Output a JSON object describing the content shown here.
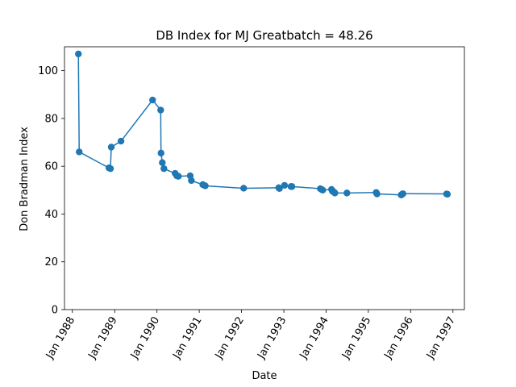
{
  "chart_data": {
    "type": "line",
    "title": "DB Index for MJ Greatbatch = 48.26",
    "xlabel": "Date",
    "ylabel": "Don Bradman Index",
    "ylim": [
      0,
      110
    ],
    "xlim": [
      "1987-10-25",
      "1997-04-10"
    ],
    "yticks": [
      0,
      20,
      40,
      60,
      80,
      100
    ],
    "xticks": [
      {
        "date": "1988-01-01",
        "label": "Jan 1988"
      },
      {
        "date": "1989-01-01",
        "label": "Jan 1989"
      },
      {
        "date": "1990-01-01",
        "label": "Jan 1990"
      },
      {
        "date": "1991-01-01",
        "label": "Jan 1991"
      },
      {
        "date": "1992-01-01",
        "label": "Jan 1992"
      },
      {
        "date": "1993-01-01",
        "label": "Jan 1993"
      },
      {
        "date": "1994-01-01",
        "label": "Jan 1994"
      },
      {
        "date": "1995-01-01",
        "label": "Jan 1995"
      },
      {
        "date": "1996-01-01",
        "label": "Jan 1996"
      },
      {
        "date": "1997-01-01",
        "label": "Jan 1997"
      }
    ],
    "grid": false,
    "color": "#1f77b4",
    "series": [
      {
        "x": [
          "1988-02-22",
          "1988-02-29",
          "1988-11-12",
          "1988-11-25",
          "1988-12-02",
          "1989-02-24",
          "1989-11-24",
          "1990-02-02",
          "1990-02-05",
          "1990-02-16",
          "1990-03-02",
          "1990-06-07",
          "1990-06-21",
          "1990-07-05",
          "1990-10-15",
          "1990-10-25",
          "1991-02-01",
          "1991-02-22",
          "1992-01-20",
          "1992-11-18",
          "1992-11-24",
          "1993-01-07",
          "1993-03-04",
          "1993-03-12",
          "1993-11-12",
          "1993-11-26",
          "1993-12-03",
          "1994-02-17",
          "1994-02-25",
          "1994-03-11",
          "1994-03-18",
          "1994-06-30",
          "1995-03-10",
          "1995-03-17",
          "1995-10-12",
          "1995-10-20",
          "1995-10-27",
          "1996-11-07",
          "1996-11-14"
        ],
        "y": [
          107,
          66,
          59.3,
          59,
          68,
          70.5,
          87.7,
          83.5,
          65.5,
          61.5,
          59,
          57,
          56,
          55.8,
          56,
          54,
          52.3,
          51.8,
          50.8,
          51,
          50.7,
          52,
          51.5,
          51.5,
          50.6,
          50.2,
          50,
          50.3,
          49.5,
          49.2,
          48.8,
          48.8,
          49,
          48.4,
          48,
          48.3,
          48.5,
          48.4,
          48.3
        ]
      }
    ]
  }
}
